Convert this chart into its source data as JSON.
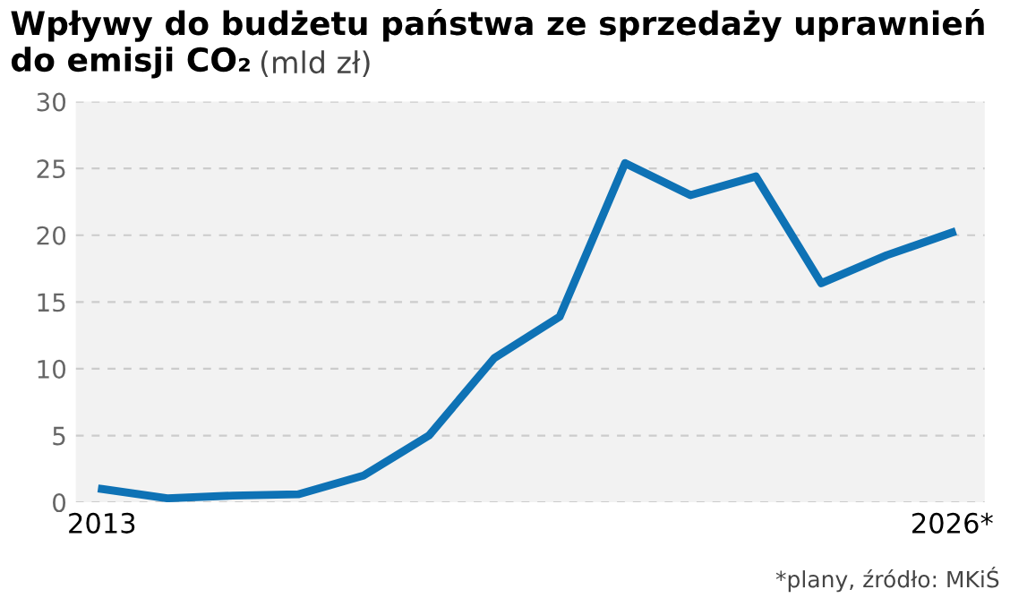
{
  "chart_data": {
    "type": "line",
    "title": "Wpływy do budżetu państwa ze sprzedaży uprawnień do emisji CO₂",
    "subtitle": "(mld zł)",
    "categories": [
      "2013",
      null,
      null,
      null,
      null,
      null,
      null,
      null,
      null,
      null,
      null,
      null,
      null,
      "2026*"
    ],
    "series": [
      {
        "color": "#0e72b5",
        "values": [
          1.0,
          0.3,
          0.5,
          0.6,
          2.0,
          5.0,
          10.8,
          13.9,
          25.4,
          23.0,
          24.4,
          16.4,
          18.5,
          20.2
        ]
      }
    ],
    "ylim": [
      0,
      30
    ],
    "yticks": [
      0,
      5,
      10,
      15,
      20,
      25,
      30
    ],
    "grid": "y",
    "marker": "none",
    "line_style": "solid",
    "annotations": [
      "*plany, źródło: MKiŚ"
    ]
  }
}
